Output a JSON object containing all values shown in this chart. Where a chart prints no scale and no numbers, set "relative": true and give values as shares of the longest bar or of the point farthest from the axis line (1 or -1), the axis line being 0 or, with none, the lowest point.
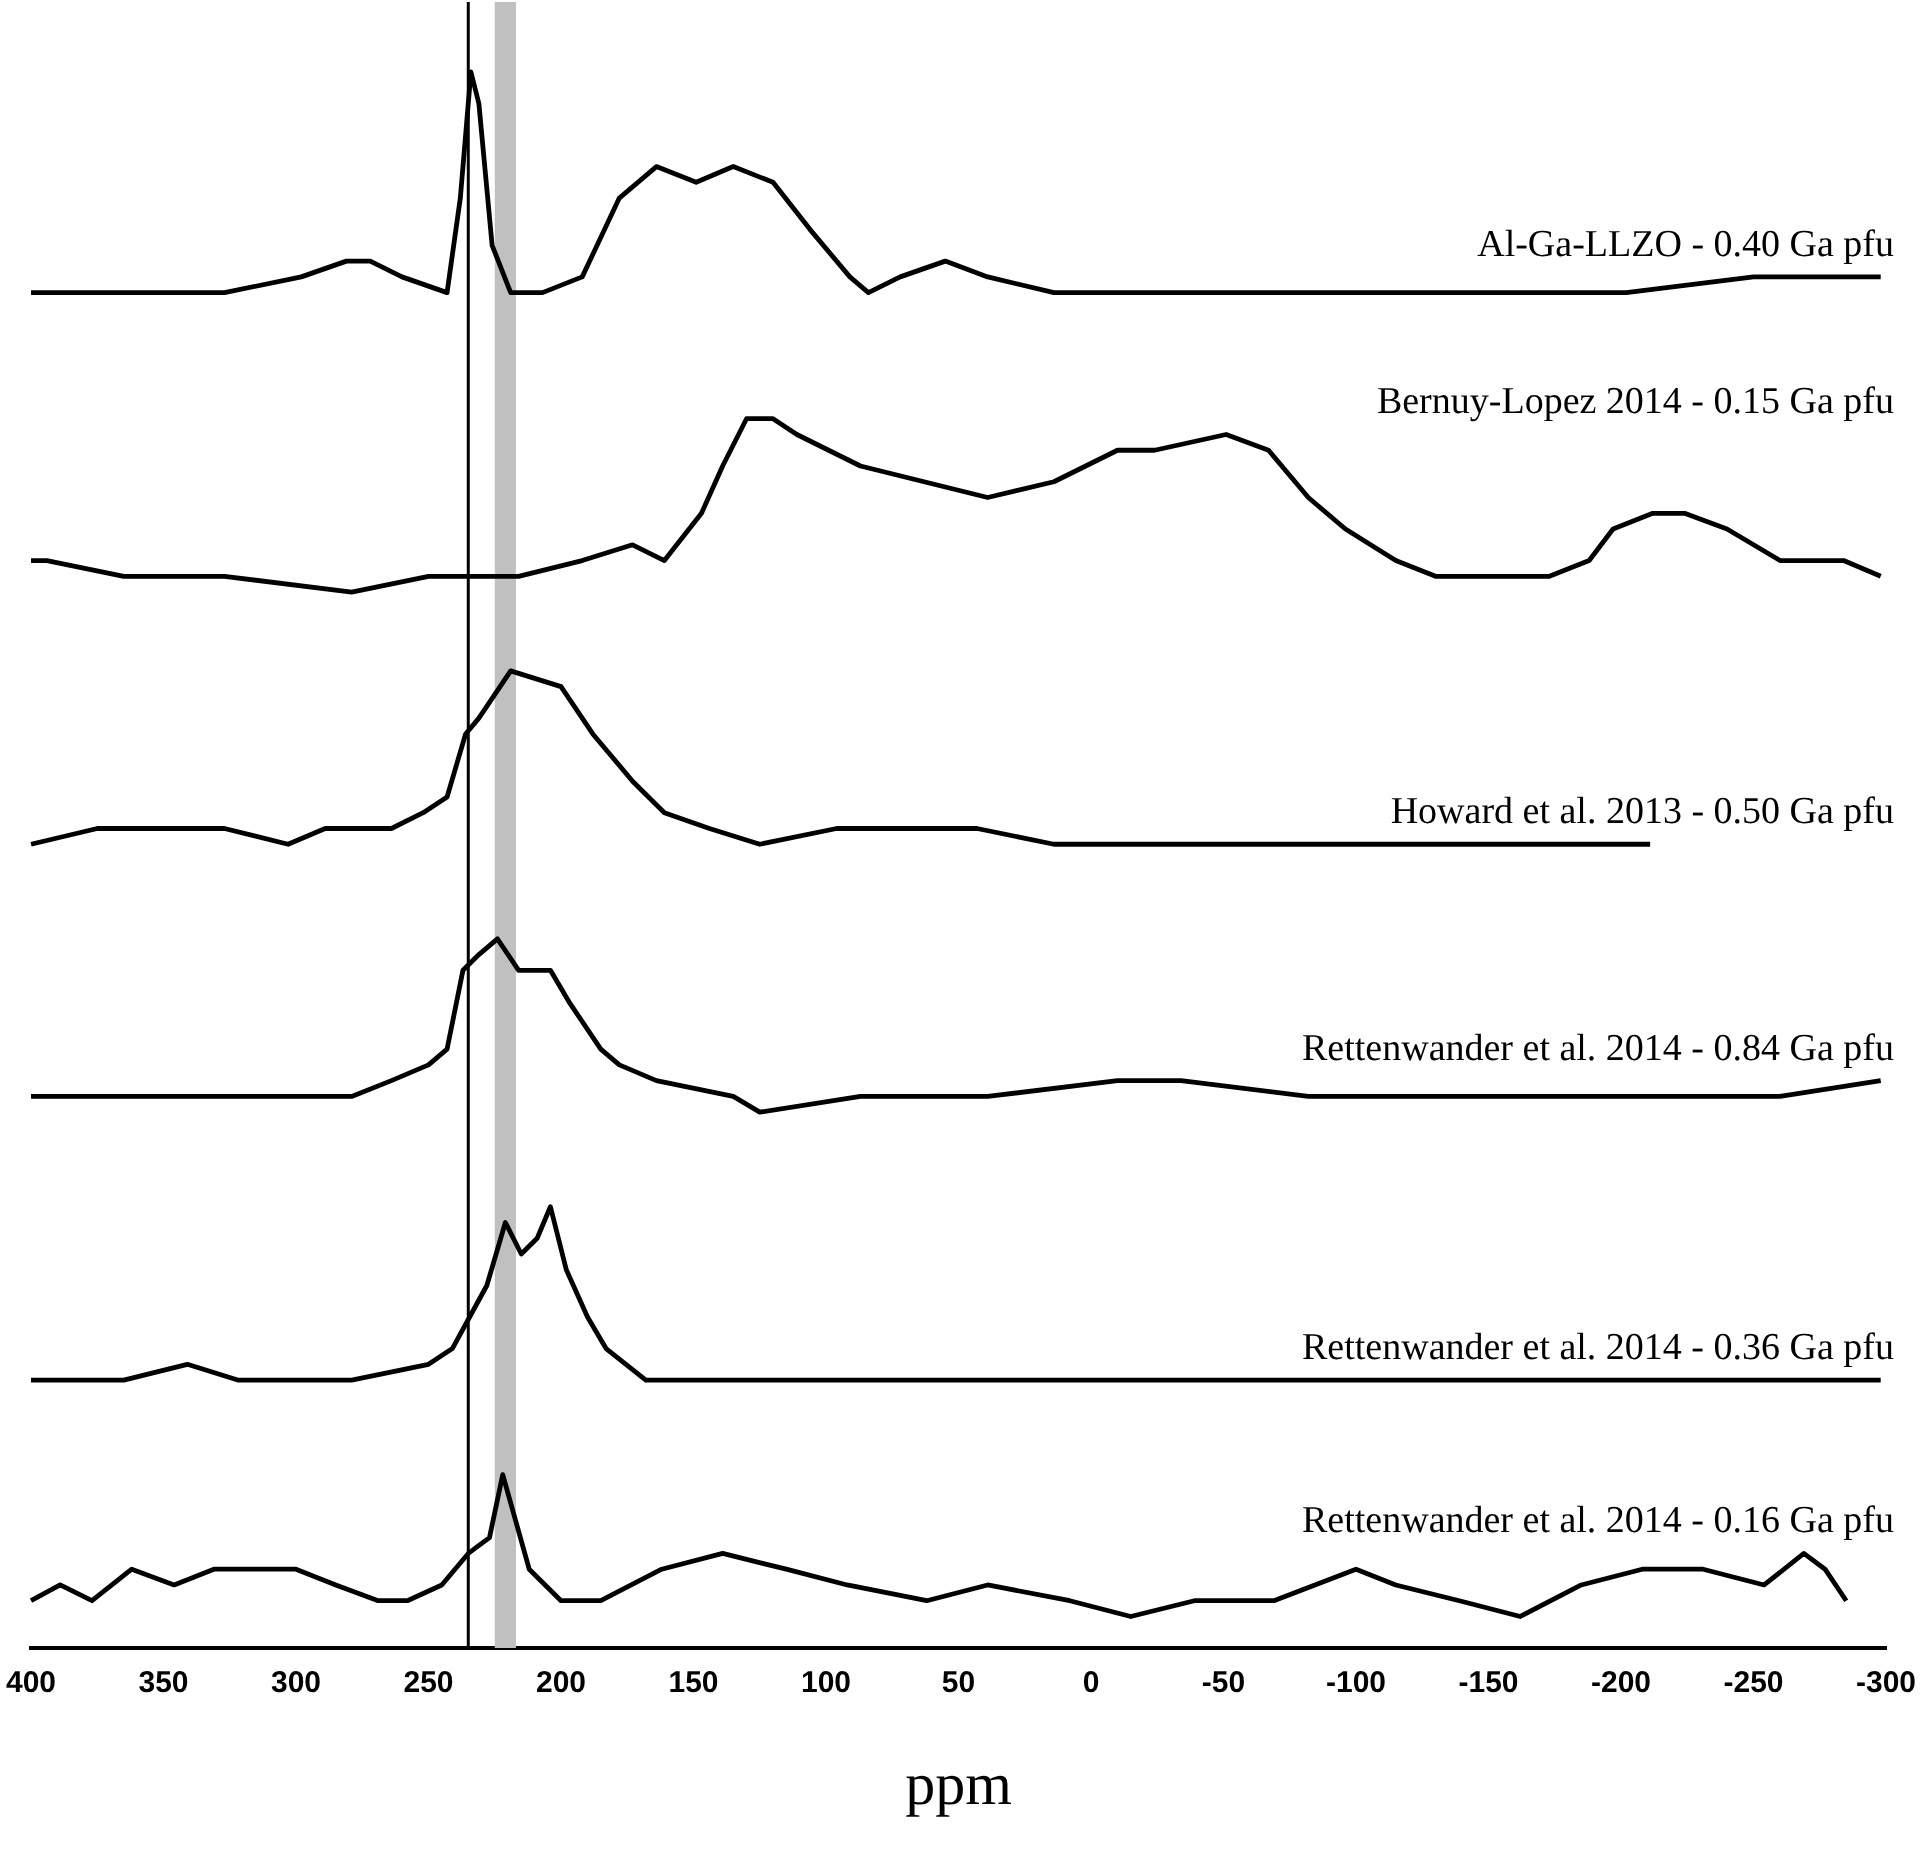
{
  "chart_data": {
    "type": "line",
    "xlabel": "ppm",
    "relative": true,
    "marker": "none",
    "xlim": [
      400,
      -300
    ],
    "xticks": [
      400,
      350,
      300,
      250,
      200,
      150,
      100,
      50,
      0,
      -50,
      -100,
      -150,
      -200,
      -250,
      -300
    ],
    "ref_lines": [
      {
        "axis": "x",
        "value": 235,
        "color": "#000000"
      }
    ],
    "bands": [
      {
        "axis": "x",
        "from": 225,
        "to": 217,
        "color": "#c0c0c0"
      }
    ],
    "series": [
      {
        "name": "Al-Ga-LLZO - 0.40 Ga pfu",
        "color": "#000000",
        "x": [
          400,
          365,
          327,
          298,
          281,
          272,
          260,
          243,
          238,
          234,
          231,
          226,
          219,
          207,
          192,
          178,
          164,
          149,
          135,
          120,
          106,
          91,
          84,
          72,
          55,
          39,
          14,
          -34,
          -106,
          -154,
          -202,
          -250,
          -298
        ],
        "values": [
          0.86,
          0.86,
          0.86,
          0.87,
          0.88,
          0.88,
          0.87,
          0.86,
          0.92,
          1.0,
          0.98,
          0.89,
          0.86,
          0.86,
          0.87,
          0.92,
          0.94,
          0.93,
          0.94,
          0.93,
          0.9,
          0.87,
          0.86,
          0.87,
          0.88,
          0.87,
          0.86,
          0.86,
          0.86,
          0.86,
          0.86,
          0.87,
          0.87
        ]
      },
      {
        "name": "Bernuy-Lopez 2014 - 0.15 Ga pfu",
        "color": "#000000",
        "x": [
          400,
          394,
          365,
          327,
          279,
          250,
          236,
          216,
          192,
          173,
          161,
          147,
          139,
          130,
          120,
          111,
          87,
          63,
          39,
          14,
          -10,
          -24,
          -51,
          -67,
          -82,
          -96,
          -115,
          -130,
          -154,
          -173,
          -188,
          -197,
          -212,
          -224,
          -240,
          -260,
          -284,
          -298
        ],
        "values": [
          0.69,
          0.69,
          0.68,
          0.68,
          0.67,
          0.68,
          0.68,
          0.68,
          0.69,
          0.7,
          0.69,
          0.72,
          0.75,
          0.78,
          0.78,
          0.77,
          0.75,
          0.74,
          0.73,
          0.74,
          0.76,
          0.76,
          0.77,
          0.76,
          0.73,
          0.71,
          0.69,
          0.68,
          0.68,
          0.68,
          0.69,
          0.71,
          0.72,
          0.72,
          0.71,
          0.69,
          0.69,
          0.68
        ]
      },
      {
        "name": "Howard et al. 2013 - 0.50 Ga pfu",
        "color": "#000000",
        "x": [
          400,
          375,
          346,
          327,
          303,
          289,
          264,
          252,
          243,
          236,
          231,
          219,
          200,
          188,
          173,
          161,
          144,
          125,
          96,
          67,
          43,
          14,
          -34,
          -106,
          -154,
          -178,
          -211
        ],
        "values": [
          0.51,
          0.52,
          0.52,
          0.52,
          0.51,
          0.52,
          0.52,
          0.53,
          0.54,
          0.58,
          0.59,
          0.62,
          0.61,
          0.58,
          0.55,
          0.53,
          0.52,
          0.51,
          0.52,
          0.52,
          0.52,
          0.51,
          0.51,
          0.51,
          0.51,
          0.51,
          0.51
        ]
      },
      {
        "name": "Rettenwander et al. 2014 - 0.84 Ga pfu",
        "color": "#000000",
        "x": [
          400,
          375,
          351,
          327,
          303,
          279,
          264,
          250,
          243,
          237,
          231,
          224,
          216,
          212,
          204,
          197,
          185,
          178,
          164,
          135,
          125,
          87,
          39,
          -10,
          -34,
          -82,
          -130,
          -178,
          -226,
          -260,
          -298
        ],
        "values": [
          0.35,
          0.35,
          0.35,
          0.35,
          0.35,
          0.35,
          0.36,
          0.37,
          0.38,
          0.43,
          0.44,
          0.45,
          0.43,
          0.43,
          0.43,
          0.41,
          0.38,
          0.37,
          0.36,
          0.35,
          0.34,
          0.35,
          0.35,
          0.36,
          0.36,
          0.35,
          0.35,
          0.35,
          0.35,
          0.35,
          0.36
        ]
      },
      {
        "name": "Rettenwander et al. 2014 - 0.36 Ga pfu",
        "color": "#000000",
        "x": [
          400,
          365,
          341,
          322,
          279,
          250,
          241,
          228,
          221,
          215,
          209,
          204,
          198,
          190,
          183,
          168,
          135,
          87,
          -10,
          -106,
          -202,
          -298
        ],
        "values": [
          0.17,
          0.17,
          0.18,
          0.17,
          0.17,
          0.18,
          0.19,
          0.23,
          0.27,
          0.25,
          0.26,
          0.28,
          0.24,
          0.21,
          0.19,
          0.17,
          0.17,
          0.17,
          0.17,
          0.17,
          0.17,
          0.17
        ]
      },
      {
        "name": "Rettenwander et al. 2014 - 0.16 Ga pfu",
        "color": "#000000",
        "x": [
          400,
          389,
          377,
          362,
          346,
          331,
          315,
          300,
          285,
          269,
          258,
          245,
          235,
          227,
          222,
          217,
          212,
          200,
          185,
          162,
          139,
          115,
          92,
          62,
          39,
          8,
          -15,
          -39,
          -69,
          -100,
          -115,
          -139,
          -162,
          -185,
          -208,
          -231,
          -254,
          -269,
          -277,
          -285
        ],
        "values": [
          0.03,
          0.04,
          0.03,
          0.05,
          0.04,
          0.05,
          0.05,
          0.05,
          0.04,
          0.03,
          0.03,
          0.04,
          0.06,
          0.07,
          0.11,
          0.08,
          0.05,
          0.03,
          0.03,
          0.05,
          0.06,
          0.05,
          0.04,
          0.03,
          0.04,
          0.03,
          0.02,
          0.03,
          0.03,
          0.05,
          0.04,
          0.03,
          0.02,
          0.04,
          0.05,
          0.05,
          0.04,
          0.06,
          0.05,
          0.03
        ]
      }
    ]
  }
}
